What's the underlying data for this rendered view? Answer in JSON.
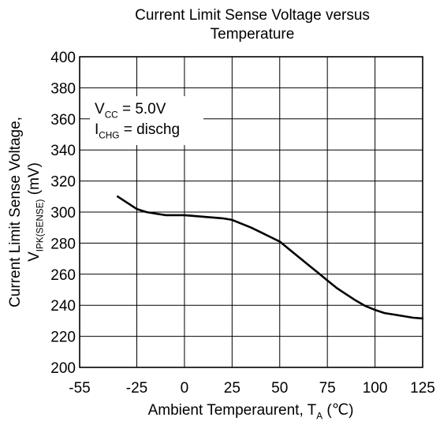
{
  "chart_data": {
    "type": "line",
    "title_lines": [
      "Current Limit Sense Voltage versus",
      "Temperature"
    ],
    "xlabel": {
      "main": "Ambient Temperaurent, T",
      "sub": "A",
      "unit": " (℃)"
    },
    "ylabel": {
      "line1": "Current Limit Sense Voltage,",
      "main": "V",
      "sub": "IPK(SENSE)",
      "unit": " (mV)"
    },
    "xlim": [
      -55,
      125
    ],
    "ylim": [
      200,
      400
    ],
    "x_ticks": [
      -55,
      -25,
      0,
      25,
      50,
      75,
      100,
      125
    ],
    "y_ticks": [
      200,
      220,
      240,
      260,
      280,
      300,
      320,
      340,
      360,
      380,
      400
    ],
    "grid": true,
    "annotations": [
      {
        "main": "V",
        "sub": "CC",
        "rest": " = 5.0V"
      },
      {
        "main": "I",
        "sub": "CHG",
        "rest": " = dischg"
      }
    ],
    "series": [
      {
        "x": [
          -35,
          -30,
          -25,
          -20,
          -15,
          -10,
          -5,
          0,
          5,
          10,
          15,
          20,
          25,
          30,
          35,
          40,
          45,
          50,
          55,
          60,
          65,
          70,
          75,
          80,
          85,
          90,
          95,
          100,
          105,
          110,
          115,
          120,
          125
        ],
        "y": [
          310,
          306,
          302,
          300,
          299,
          298,
          298,
          298,
          297.5,
          297,
          296.5,
          296,
          295,
          292.5,
          290,
          287,
          284,
          281,
          276,
          271,
          266,
          261,
          256,
          251,
          247,
          243,
          239.5,
          237,
          235,
          234,
          233,
          232,
          231.5
        ]
      }
    ]
  }
}
